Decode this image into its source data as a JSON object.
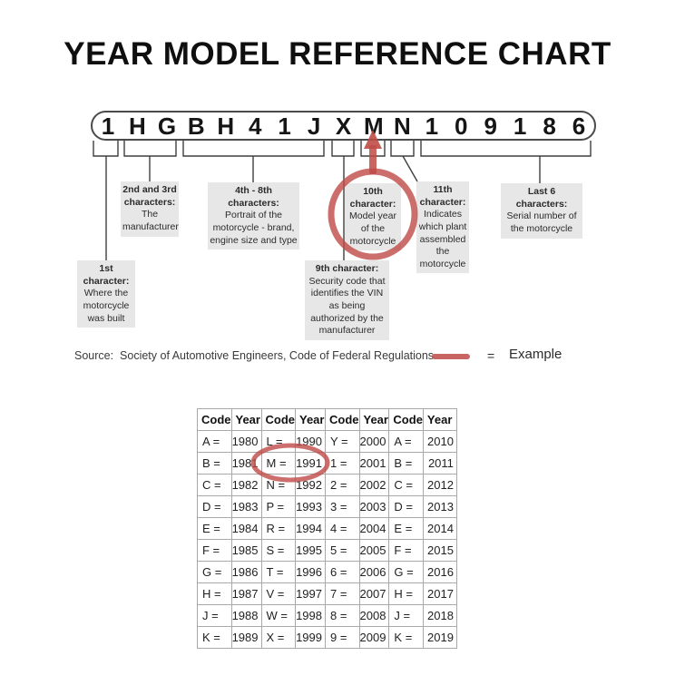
{
  "title": "YEAR MODEL REFERENCE CHART",
  "vin": {
    "characters": [
      "1",
      "H",
      "G",
      "B",
      "H",
      "4",
      "1",
      "J",
      "X",
      "M",
      "N",
      "1",
      "0",
      "9",
      "1",
      "8",
      "6"
    ]
  },
  "callouts": {
    "first": {
      "heading": "1st character:",
      "body": "Where the motorcycle was built"
    },
    "second_third": {
      "heading": "2nd and 3rd characters:",
      "body": "The manufacturer"
    },
    "fourth_eighth": {
      "heading": "4th - 8th characters:",
      "body": "Portrait of the motorcycle - brand, engine size and type"
    },
    "ninth": {
      "heading": "9th character:",
      "body": "Security code that identifies the VIN as being authorized by the manufacturer"
    },
    "tenth": {
      "heading": "10th character:",
      "body": "Model year of the motorcycle"
    },
    "eleventh": {
      "heading": "11th character:",
      "body": "Indicates which plant assembled the motorcycle"
    },
    "last_six": {
      "heading": "Last 6 characters:",
      "body": "Serial number of the motorcycle"
    }
  },
  "legend": {
    "source": "Source:  Society of Automotive Engineers, Code of Federal Regulations",
    "equals_sign": "=",
    "example_label": "Example"
  },
  "icons": {
    "example_marker": "red-line",
    "model_year_pointer": "red-arrow-up",
    "model_year_highlight": "red-circle",
    "table_highlight": "red-ellipse"
  },
  "colors": {
    "accent_red": "#bf4b47",
    "callout_gray": "#e7e7e7",
    "connector_black": "#3f3f3f"
  },
  "chart_data": {
    "type": "table",
    "headers": [
      "Code",
      "Year",
      "Code",
      "Year",
      "Code",
      "Year",
      "Code",
      "Year"
    ],
    "rows": [
      [
        "A =",
        "1980",
        "L =",
        "1990",
        "Y =",
        "2000",
        "A =",
        "2010"
      ],
      [
        "B =",
        "1981",
        "M =",
        "1991",
        "1 =",
        "2001",
        "B =",
        "2011"
      ],
      [
        "C =",
        "1982",
        "N =",
        "1992",
        "2 =",
        "2002",
        "C =",
        "2012"
      ],
      [
        "D =",
        "1983",
        "P =",
        "1993",
        "3 =",
        "2003",
        "D =",
        "2013"
      ],
      [
        "E =",
        "1984",
        "R =",
        "1994",
        "4 =",
        "2004",
        "E =",
        "2014"
      ],
      [
        "F =",
        "1985",
        "S =",
        "1995",
        "5 =",
        "2005",
        "F =",
        "2015"
      ],
      [
        "G =",
        "1986",
        "T =",
        "1996",
        "6 =",
        "2006",
        "G =",
        "2016"
      ],
      [
        "H =",
        "1987",
        "V =",
        "1997",
        "7 =",
        "2007",
        "H =",
        "2017"
      ],
      [
        "J =",
        "1988",
        "W =",
        "1998",
        "8 =",
        "2008",
        "J =",
        "2018"
      ],
      [
        "K =",
        "1989",
        "X =",
        "1999",
        "9 =",
        "2009",
        "K =",
        "2019"
      ]
    ],
    "highlighted_pair": "M = 1991"
  }
}
